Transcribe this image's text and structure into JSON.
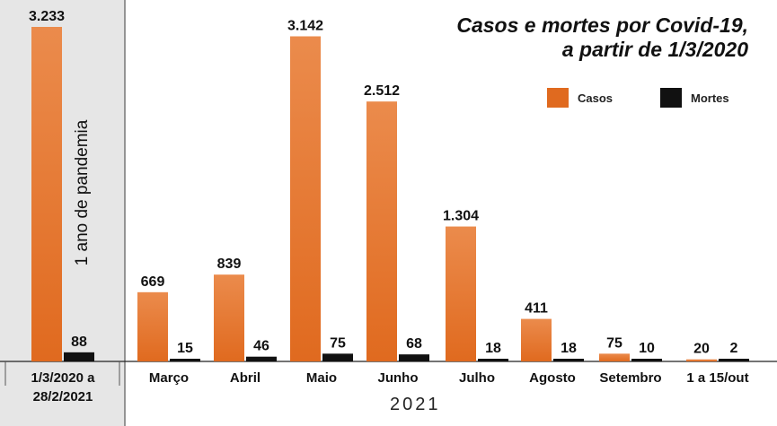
{
  "title": {
    "line1": "Casos e mortes por Covid-19,",
    "line2": "a partir de 1/3/2020"
  },
  "legend": {
    "casos": "Casos",
    "mortes": "Mortes"
  },
  "colors": {
    "casos": "#e06a1f",
    "mortes": "#111111",
    "panel_bg": "#e6e6e6"
  },
  "chart_data": {
    "type": "bar",
    "categories": [
      "1/3/2020 a 28/2/2021",
      "Março",
      "Abril",
      "Maio",
      "Junho",
      "Julho",
      "Agosto",
      "Setembro",
      "1 a 15/out"
    ],
    "category_lines": [
      [
        "1/3/2020 a",
        "28/2/2021"
      ],
      [
        "Março"
      ],
      [
        "Abril"
      ],
      [
        "Maio"
      ],
      [
        "Junho"
      ],
      [
        "Julho"
      ],
      [
        "Agosto"
      ],
      [
        "Setembro"
      ],
      [
        "1 a 15/out"
      ]
    ],
    "series": [
      {
        "name": "Casos",
        "values": [
          3233,
          669,
          839,
          3142,
          2512,
          1304,
          411,
          75,
          20
        ]
      },
      {
        "name": "Mortes",
        "values": [
          88,
          15,
          46,
          75,
          68,
          18,
          18,
          10,
          2
        ]
      }
    ],
    "value_labels": {
      "Casos": [
        "3.233",
        "669",
        "839",
        "3.142",
        "2.512",
        "1.304",
        "411",
        "75",
        "20"
      ],
      "Mortes": [
        "88",
        "15",
        "46",
        "75",
        "68",
        "18",
        "18",
        "10",
        "2"
      ]
    },
    "group_label": "2021",
    "annotation": "1 ano de pandemia",
    "ylim": [
      0,
      3233
    ],
    "grid": false,
    "legend_position": "top-right"
  }
}
